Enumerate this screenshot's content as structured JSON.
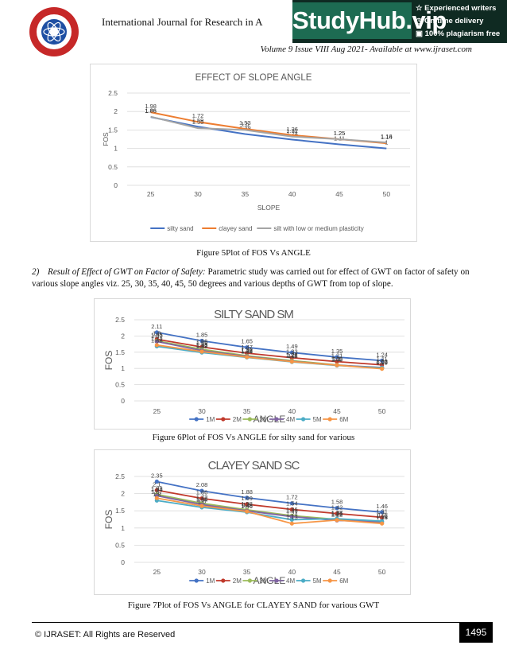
{
  "header": {
    "journal_title": "International Journal for Research in A",
    "volume_line": "Volume 9 Issue VIII Aug 2021- Available at www.ijraset.com"
  },
  "ad": {
    "brand": "StudyHub.vip",
    "features": [
      "Experienced writers",
      "On-time delivery",
      "100% plagiarism free"
    ]
  },
  "figures": {
    "fig5_caption": "Figure 5Plot of FOS Vs ANGLE",
    "fig6_caption": "Figure 6Plot of FOS Vs ANGLE for silty sand for various",
    "fig7_caption": "Figure 7Plot of FOS Vs ANGLE for CLAYEY SAND for various GWT"
  },
  "paragraph": {
    "number": "2)",
    "title": "Result of Effect of GWT on Factor of Safety:",
    "text": " Parametric study was carried out for effect of GWT on factor of safety on various slope angles viz. 25, 30, 35, 40, 45, 50 degrees and various depths of GWT from top of slope."
  },
  "footer": {
    "copyright": "© IJRASET: All Rights are Reserved",
    "page": "1495"
  },
  "chart_data": [
    {
      "type": "line",
      "title": "EFFECT OF SLOPE ANGLE",
      "xlabel": "SLOPE",
      "ylabel": "FOS",
      "x": [
        25,
        30,
        35,
        40,
        45,
        50
      ],
      "ylim": [
        0,
        2.5
      ],
      "yticks": [
        0,
        0.5,
        1,
        1.5,
        2,
        2.5
      ],
      "legend": "bottom",
      "grid": true,
      "series": [
        {
          "name": "silty sand",
          "color": "#4472C4",
          "values": [
            1.85,
            1.59,
            1.39,
            1.24,
            1.11,
            1.0
          ]
        },
        {
          "name": "clayey sand",
          "color": "#ED7D31",
          "values": [
            1.98,
            1.72,
            1.53,
            1.36,
            1.25,
            1.14
          ]
        },
        {
          "name": "silt with low or medium plasticity",
          "color": "#A5A5A5",
          "values": [
            1.86,
            1.55,
            1.5,
            1.32,
            1.25,
            1.16
          ]
        }
      ]
    },
    {
      "type": "line",
      "title": "SILTY SAND SM",
      "xlabel": "ANGLE",
      "ylabel": "FOS",
      "x": [
        25,
        30,
        35,
        40,
        45,
        50
      ],
      "ylim": [
        0,
        2.5
      ],
      "yticks": [
        0,
        0.5,
        1,
        1.5,
        2,
        2.5
      ],
      "legend": "bottom",
      "grid": true,
      "series": [
        {
          "name": "1M",
          "color": "#4472C4",
          "values": [
            2.11,
            1.85,
            1.65,
            1.49,
            1.35,
            1.24
          ]
        },
        {
          "name": "2M",
          "color": "#C0392B",
          "values": [
            1.9,
            1.66,
            1.47,
            1.33,
            1.21,
            1.11
          ]
        },
        {
          "name": "3M",
          "color": "#9BBB59",
          "values": [
            1.85,
            1.59,
            1.39,
            1.24,
            1.11,
            1.0
          ]
        },
        {
          "name": "4M",
          "color": "#8064A2",
          "values": [
            1.83,
            1.55,
            1.37,
            1.22,
            1.1,
            1.03
          ]
        },
        {
          "name": "5M",
          "color": "#4BACC6",
          "values": [
            1.68,
            1.49,
            1.34,
            1.2,
            1.09,
            1.02
          ]
        },
        {
          "name": "6M",
          "color": "#F79646",
          "values": [
            1.72,
            1.52,
            1.35,
            1.21,
            1.1,
            0.99
          ]
        }
      ]
    },
    {
      "type": "line",
      "title": "CLAYEY SAND SC",
      "xlabel": "ANGLE",
      "ylabel": "FOS",
      "x": [
        25,
        30,
        35,
        40,
        45,
        50
      ],
      "ylim": [
        0,
        2.5
      ],
      "yticks": [
        0,
        0.5,
        1,
        1.5,
        2,
        2.5
      ],
      "legend": "bottom",
      "grid": true,
      "series": [
        {
          "name": "1M",
          "color": "#4472C4",
          "values": [
            2.35,
            2.08,
            1.88,
            1.72,
            1.58,
            1.46
          ]
        },
        {
          "name": "2M",
          "color": "#C0392B",
          "values": [
            2.1,
            1.86,
            1.69,
            1.54,
            1.42,
            1.31
          ]
        },
        {
          "name": "3M",
          "color": "#9BBB59",
          "values": [
            1.98,
            1.72,
            1.53,
            1.36,
            1.25,
            1.14
          ]
        },
        {
          "name": "4M",
          "color": "#8064A2",
          "values": [
            1.94,
            1.68,
            1.5,
            1.33,
            1.22,
            1.18
          ]
        },
        {
          "name": "5M",
          "color": "#4BACC6",
          "values": [
            1.8,
            1.6,
            1.46,
            1.24,
            1.27,
            1.2
          ]
        },
        {
          "name": "6M",
          "color": "#F79646",
          "values": [
            1.87,
            1.64,
            1.48,
            1.13,
            1.23,
            1.13
          ]
        }
      ]
    }
  ]
}
